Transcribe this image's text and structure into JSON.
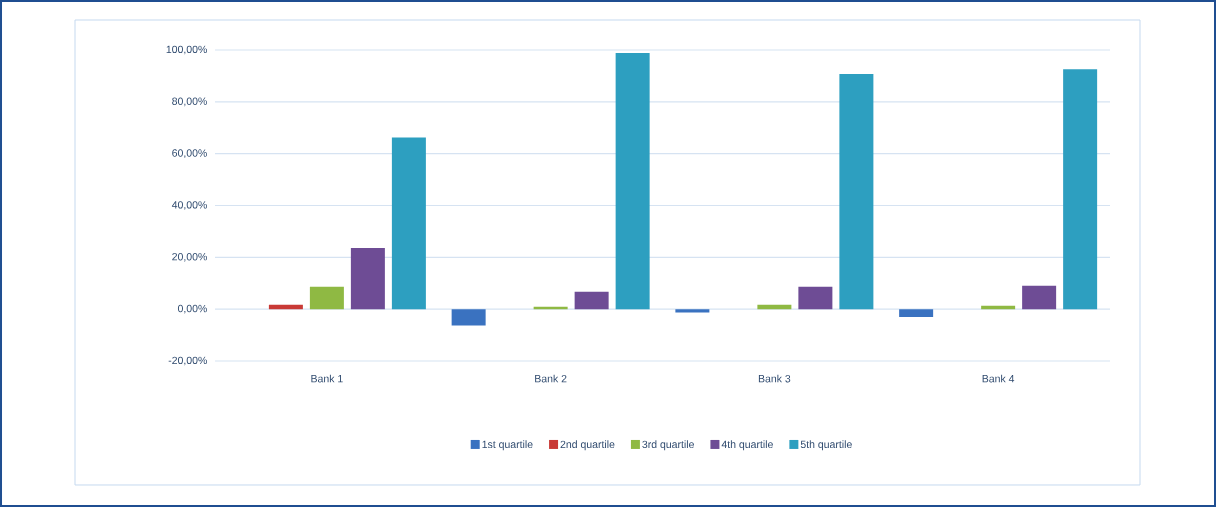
{
  "chart_data": {
    "type": "bar",
    "categories": [
      "Bank 1",
      "Bank 2",
      "Bank 3",
      "Bank 4"
    ],
    "series": [
      {
        "name": "1st quartile",
        "color": "#3a72c0",
        "values": [
          0,
          -6.3,
          -1.3,
          -3.0
        ]
      },
      {
        "name": "2nd quartile",
        "color": "#c93a36",
        "values": [
          1.7,
          0,
          0,
          0
        ]
      },
      {
        "name": "3rd quartile",
        "color": "#8fb943",
        "values": [
          8.6,
          0.9,
          1.7,
          1.3
        ]
      },
      {
        "name": "4th quartile",
        "color": "#6e4c95",
        "values": [
          23.6,
          6.7,
          8.6,
          9.0
        ]
      },
      {
        "name": "5th quartile",
        "color": "#2d9fc0",
        "values": [
          66.2,
          98.8,
          90.7,
          92.6
        ]
      }
    ],
    "ylim": [
      -20,
      100
    ],
    "yticks": [
      {
        "value": -20,
        "label": "-20,00%"
      },
      {
        "value": 0,
        "label": "0,00%"
      },
      {
        "value": 20,
        "label": "20,00%"
      },
      {
        "value": 40,
        "label": "40,00%"
      },
      {
        "value": 60,
        "label": "60,00%"
      },
      {
        "value": 80,
        "label": "80,00%"
      },
      {
        "value": 100,
        "label": "100,00%"
      }
    ],
    "grid": "y",
    "legend": "bottom"
  }
}
